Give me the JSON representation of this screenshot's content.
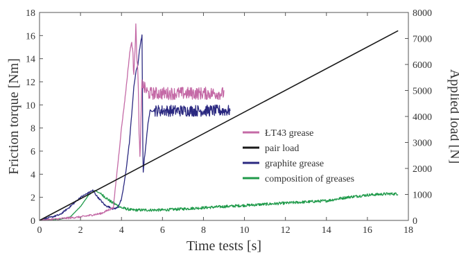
{
  "chart_data": {
    "type": "line",
    "xlabel": "Time tests [s]",
    "ylabel_left": "Friction torque [Nm]",
    "ylabel_right": "Applied load [N]",
    "xlim": [
      0,
      18
    ],
    "ylim_left": [
      0,
      18
    ],
    "ylim_right": [
      0,
      8000
    ],
    "x_ticks": [
      0,
      2,
      4,
      6,
      8,
      10,
      12,
      14,
      16,
      18
    ],
    "y_left_ticks": [
      0,
      2,
      4,
      6,
      8,
      10,
      12,
      14,
      16,
      18
    ],
    "y_right_ticks": [
      0,
      1000,
      2000,
      3000,
      4000,
      5000,
      6000,
      7000,
      8000
    ],
    "grid": false,
    "legend_position": "right",
    "colors": {
      "lt43": "#c46aa6",
      "pair_load": "#1a1a1a",
      "graphite": "#2a2880",
      "composition": "#1f9a4a",
      "axis": "#555555"
    },
    "series": [
      {
        "name": "ŁT43 grease",
        "axis": "left",
        "key": "lt43",
        "noise": 0.55,
        "noise_from": 4.5,
        "x": [
          0,
          1,
          2,
          3,
          3.6,
          3.8,
          4.0,
          4.2,
          4.4,
          4.5,
          4.6,
          4.7,
          4.8,
          4.9,
          5.0,
          5.1,
          5.3,
          6,
          7,
          8,
          9
        ],
        "y": [
          0,
          0.15,
          0.3,
          0.6,
          1.1,
          4.5,
          8.0,
          11.0,
          14.5,
          15.5,
          13.0,
          16.5,
          12.5,
          5.0,
          12.0,
          11.5,
          11.0,
          11.0,
          11.0,
          11.0,
          11.0
        ]
      },
      {
        "name": "pair load",
        "axis": "right",
        "key": "pair_load",
        "noise": 0,
        "x": [
          0,
          17.5
        ],
        "y": [
          0,
          7300
        ]
      },
      {
        "name": "graphite grease",
        "axis": "left",
        "key": "graphite",
        "noise": 0.5,
        "noise_from": 5.6,
        "x": [
          0,
          1,
          1.5,
          2.0,
          2.3,
          2.6,
          2.8,
          3.2,
          3.6,
          3.8,
          4.0,
          4.2,
          4.4,
          4.6,
          4.7,
          4.8,
          4.9,
          5.0,
          5.05,
          5.1,
          5.3,
          5.4,
          5.6,
          6,
          7,
          8,
          9,
          9.3
        ],
        "y": [
          0,
          0.5,
          1.2,
          2.0,
          2.3,
          2.6,
          2.1,
          1.3,
          1.0,
          1.1,
          1.8,
          4.0,
          7.0,
          11.5,
          12.8,
          13.5,
          15.0,
          16.0,
          4.0,
          5.0,
          8.5,
          9.5,
          9.5,
          9.5,
          9.5,
          9.5,
          9.5,
          9.5
        ]
      },
      {
        "name": "composition of greases",
        "axis": "left",
        "key": "composition",
        "noise": 0.12,
        "noise_from": 3.0,
        "x": [
          0,
          1,
          1.5,
          2.0,
          2.4,
          2.7,
          3.0,
          3.5,
          4.0,
          4.5,
          5,
          6,
          7,
          8,
          9,
          10,
          11,
          12,
          13,
          14,
          15,
          16,
          17,
          17.5
        ],
        "y": [
          0,
          0.1,
          0.3,
          1.2,
          2.2,
          2.6,
          2.3,
          1.6,
          1.1,
          0.9,
          0.9,
          0.9,
          1.0,
          1.1,
          1.2,
          1.3,
          1.4,
          1.5,
          1.6,
          1.7,
          2.0,
          2.2,
          2.3,
          2.3
        ]
      }
    ]
  }
}
